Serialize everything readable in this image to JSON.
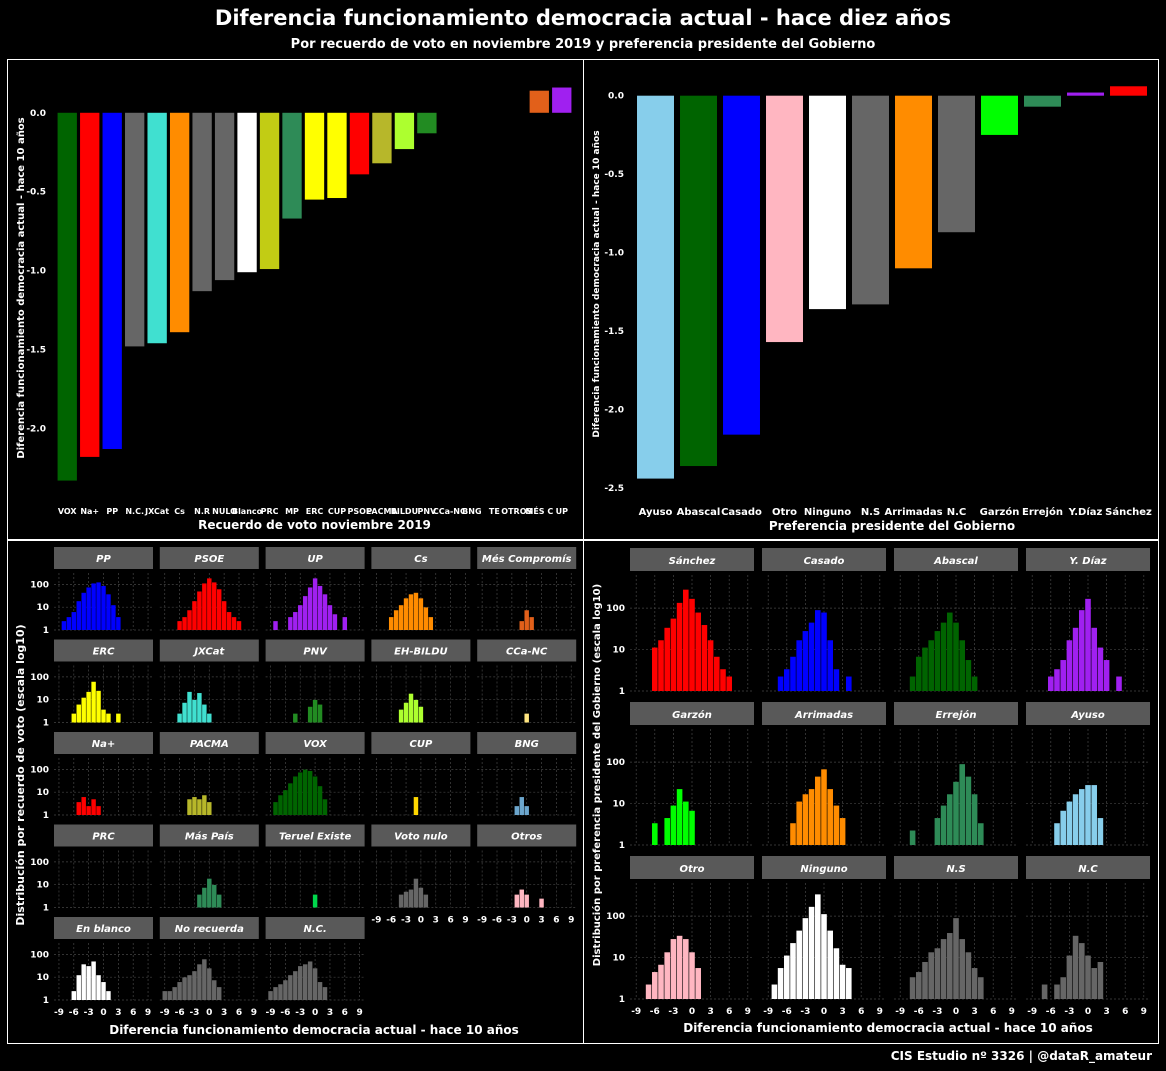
{
  "title": "Diferencia funcionamiento democracia actual - hace diez años",
  "subtitle": "Por recuerdo de voto en noviembre 2019 y preferencia presidente del Gobierno",
  "footer": "CIS Estudio nº 3326 | @dataR_amateur",
  "chart_data": [
    {
      "type": "bar",
      "title": "",
      "xlabel": "Recuerdo de voto noviembre 2019",
      "ylabel": "Diferencia funcionamiento democracia actual - hace 10 años",
      "ylim": [
        -2.32,
        0.1
      ],
      "yticks": [
        0.0,
        -0.5,
        -1.0,
        -1.5,
        -2.0
      ],
      "ytick_labels": [
        "0.0",
        "-0.5",
        "-1.0",
        "-1.5",
        "-2.0"
      ],
      "categories": [
        "VOX",
        "Na+",
        "PP",
        "N.C.",
        "JXCat",
        "Cs",
        "N.R",
        "NULO",
        "Blanco",
        "PRC",
        "MP",
        "ERC",
        "CUP",
        "PSOE",
        "PACMA",
        "BILDU",
        "PNV",
        "CCa-NC",
        "BNG",
        "TE",
        "OTROS",
        "MÉS C",
        "UP"
      ],
      "values": [
        -2.33,
        -2.18,
        -2.13,
        -1.48,
        -1.46,
        -1.39,
        -1.13,
        -1.06,
        -1.01,
        -0.99,
        -0.67,
        -0.55,
        -0.54,
        -0.39,
        -0.32,
        -0.23,
        -0.13,
        0,
        0,
        0,
        0,
        0.14,
        0.16
      ],
      "colors": [
        "#006400",
        "#FF0000",
        "#0000FF",
        "#666666",
        "#40E0D0",
        "#FF8C00",
        "#666666",
        "#666666",
        "#FFFFFF",
        "#C2CC14",
        "#2E8B57",
        "#FFFF00",
        "#FFFF00",
        "#FF0000",
        "#B7B72A",
        "#ADFF2F",
        "#228B22",
        "#FFE680",
        "#6CA6CD",
        "#00D84C",
        "#FFB6C1",
        "#E2601A",
        "#A020F0"
      ]
    },
    {
      "type": "bar",
      "title": "",
      "xlabel": "Preferencia presidente del Gobierno",
      "ylabel": "Diferencia funcionamiento democracia actual - hace 10 años",
      "ylim": [
        -2.5,
        0.1
      ],
      "yticks": [
        0.0,
        -0.5,
        -1.0,
        -1.5,
        -2.0,
        -2.5
      ],
      "ytick_labels": [
        "0.0",
        "-0.5",
        "-1.0",
        "-1.5",
        "-2.0",
        "-2.5"
      ],
      "categories": [
        "Ayuso",
        "Abascal",
        "Casado",
        "Otro",
        "Ninguno",
        "N.S",
        "Arrimadas",
        "N.C",
        "Garzón",
        "Errejón",
        "Y.Díaz",
        "Sánchez"
      ],
      "values": [
        -2.44,
        -2.36,
        -2.16,
        -1.57,
        -1.36,
        -1.33,
        -1.1,
        -0.87,
        -0.25,
        -0.07,
        0.02,
        0.06
      ],
      "colors": [
        "#87CEEB",
        "#006400",
        "#0000FF",
        "#FFB6C1",
        "#FFFFFF",
        "#666666",
        "#FF8C00",
        "#666666",
        "#00FF00",
        "#2E8B57",
        "#A020F0",
        "#FF0000"
      ]
    },
    {
      "type": "histogram",
      "title": "",
      "xlabel": "Diferencia funcionamiento democracia actual - hace 10 años",
      "ylabel": "Distribución por recuerdo de voto (escala log10)",
      "x_range": [
        -10,
        10
      ],
      "xticks": [
        -9,
        -6,
        -3,
        0,
        3,
        6,
        9
      ],
      "xtick_labels": [
        "-9",
        "-6",
        "-3",
        "0",
        "3",
        "6",
        "9"
      ],
      "yticks": [
        1,
        10,
        100
      ],
      "ytick_labels": [
        "1",
        "10",
        "100"
      ],
      "ymax_log": 2.5,
      "panels": [
        {
          "name": "PP",
          "color": "#0000FF",
          "counts": {
            "-8": 2,
            "-7": 3,
            "-6": 5,
            "-5": 15,
            "-4": 35,
            "-3": 60,
            "-2": 90,
            "-1": 100,
            "0": 70,
            "1": 30,
            "2": 10,
            "3": 3
          }
        },
        {
          "name": "PSOE",
          "color": "#FF0000",
          "counts": {
            "-6": 2,
            "-5": 3,
            "-4": 6,
            "-3": 15,
            "-2": 40,
            "-1": 90,
            "0": 150,
            "1": 100,
            "2": 50,
            "3": 15,
            "4": 5,
            "5": 3,
            "6": 2
          }
        },
        {
          "name": "UP",
          "color": "#A020F0",
          "counts": {
            "-8": 2,
            "-5": 3,
            "-4": 5,
            "-3": 10,
            "-2": 25,
            "-1": 60,
            "0": 150,
            "1": 70,
            "2": 30,
            "3": 10,
            "4": 4,
            "6": 3
          }
        },
        {
          "name": "Cs",
          "color": "#FF8C00",
          "counts": {
            "-6": 3,
            "-5": 6,
            "-4": 10,
            "-3": 20,
            "-2": 30,
            "-1": 35,
            "0": 20,
            "1": 8,
            "2": 3
          }
        },
        {
          "name": "Més Compromís",
          "color": "#E2601A",
          "counts": {
            "-1": 2,
            "0": 6,
            "1": 3
          }
        },
        {
          "name": "ERC",
          "color": "#FFFF00",
          "counts": {
            "-6": 2,
            "-5": 5,
            "-4": 10,
            "-3": 18,
            "-2": 50,
            "-1": 20,
            "0": 3,
            "1": 2,
            "3": 2
          }
        },
        {
          "name": "JXCat",
          "color": "#40E0D0",
          "counts": {
            "-6": 2,
            "-5": 6,
            "-4": 18,
            "-3": 8,
            "-2": 16,
            "-1": 5,
            "0": 2
          }
        },
        {
          "name": "PNV",
          "color": "#228B22",
          "counts": {
            "-4": 2,
            "-1": 4,
            "0": 8,
            "1": 5
          }
        },
        {
          "name": "EH-BILDU",
          "color": "#ADFF2F",
          "counts": {
            "-4": 3,
            "-3": 6,
            "-2": 15,
            "-1": 8,
            "0": 4
          }
        },
        {
          "name": "CCa-NC",
          "color": "#FFE680",
          "counts": {
            "0": 2
          }
        },
        {
          "name": "Na+",
          "color": "#FF0000",
          "counts": {
            "-5": 3,
            "-4": 5,
            "-3": 2,
            "-2": 4,
            "-1": 2
          }
        },
        {
          "name": "PACMA",
          "color": "#B7B72A",
          "counts": {
            "-4": 4,
            "-3": 5,
            "-2": 4,
            "-1": 6,
            "0": 3
          }
        },
        {
          "name": "VOX",
          "color": "#006400",
          "counts": {
            "-8": 3,
            "-7": 6,
            "-6": 10,
            "-5": 20,
            "-4": 40,
            "-3": 60,
            "-2": 80,
            "-1": 70,
            "0": 40,
            "1": 15,
            "2": 4
          }
        },
        {
          "name": "CUP",
          "color": "#FFD700",
          "counts": {
            "-1": 5
          }
        },
        {
          "name": "BNG",
          "color": "#6CA6CD",
          "counts": {
            "-2": 2,
            "-1": 5,
            "0": 2
          }
        },
        {
          "name": "PRC",
          "color": "#C2CC14",
          "counts": {}
        },
        {
          "name": "Más País",
          "color": "#2E8B57",
          "counts": {
            "-2": 3,
            "-1": 6,
            "0": 15,
            "1": 8,
            "2": 3
          }
        },
        {
          "name": "Teruel Existe",
          "color": "#00D84C",
          "counts": {
            "0": 3
          }
        },
        {
          "name": "Voto nulo",
          "color": "#666666",
          "counts": {
            "-4": 3,
            "-3": 4,
            "-2": 5,
            "-1": 15,
            "0": 6,
            "1": 3
          }
        },
        {
          "name": "Otros",
          "color": "#FFB6C1",
          "counts": {
            "-2": 3,
            "-1": 5,
            "0": 3,
            "3": 2
          }
        },
        {
          "name": "En blanco",
          "color": "#FFFFFF",
          "counts": {
            "-6": 2,
            "-5": 10,
            "-4": 30,
            "-3": 25,
            "-2": 40,
            "-1": 10,
            "0": 5,
            "1": 2
          }
        },
        {
          "name": "No recuerda",
          "color": "#666666",
          "counts": {
            "-9": 2,
            "-8": 2,
            "-7": 3,
            "-6": 5,
            "-5": 8,
            "-4": 10,
            "-3": 15,
            "-2": 30,
            "-1": 50,
            "0": 20,
            "1": 6,
            "2": 3
          }
        },
        {
          "name": "N.C.",
          "color": "#666666",
          "counts": {
            "-9": 2,
            "-8": 3,
            "-7": 4,
            "-6": 6,
            "-5": 10,
            "-4": 15,
            "-3": 25,
            "-2": 30,
            "-1": 40,
            "0": 20,
            "1": 5,
            "2": 3
          }
        }
      ]
    },
    {
      "type": "histogram",
      "title": "",
      "xlabel": "Diferencia funcionamiento democracia actual - hace 10 años",
      "ylabel": "Distribución por preferencia presidente del Gobierno (escala log10)",
      "x_range": [
        -10,
        10
      ],
      "xticks": [
        -9,
        -6,
        -3,
        0,
        3,
        6,
        9
      ],
      "xtick_labels": [
        "-9",
        "-6",
        "-3",
        "0",
        "3",
        "6",
        "9"
      ],
      "yticks": [
        1,
        10,
        100
      ],
      "ytick_labels": [
        "1",
        "10",
        "100"
      ],
      "ymax_log": 2.8,
      "panels": [
        {
          "name": "Sánchez",
          "color": "#FF0000",
          "counts": {
            "-6": 10,
            "-5": 15,
            "-4": 30,
            "-3": 50,
            "-2": 120,
            "-1": 250,
            "0": 150,
            "1": 70,
            "2": 35,
            "3": 15,
            "4": 6,
            "5": 3,
            "6": 2
          }
        },
        {
          "name": "Casado",
          "color": "#0000FF",
          "counts": {
            "-7": 2,
            "-6": 3,
            "-5": 6,
            "-4": 15,
            "-3": 25,
            "-2": 40,
            "-1": 80,
            "0": 70,
            "1": 15,
            "2": 3,
            "4": 2
          }
        },
        {
          "name": "Abascal",
          "color": "#006400",
          "counts": {
            "-7": 2,
            "-6": 6,
            "-5": 10,
            "-4": 15,
            "-3": 25,
            "-2": 40,
            "-1": 70,
            "0": 40,
            "1": 15,
            "2": 5,
            "3": 2
          }
        },
        {
          "name": "Y. Díaz",
          "color": "#A020F0",
          "counts": {
            "-6": 2,
            "-5": 3,
            "-4": 5,
            "-3": 15,
            "-2": 30,
            "-1": 80,
            "0": 150,
            "1": 30,
            "2": 10,
            "3": 5,
            "5": 2
          }
        },
        {
          "name": "Garzón",
          "color": "#00FF00",
          "counts": {
            "-6": 3,
            "-4": 4,
            "-3": 8,
            "-2": 20,
            "-1": 10,
            "0": 6
          }
        },
        {
          "name": "Arrimadas",
          "color": "#FF8C00",
          "counts": {
            "-5": 3,
            "-4": 10,
            "-3": 15,
            "-2": 20,
            "-1": 40,
            "0": 60,
            "1": 20,
            "2": 8,
            "3": 4
          }
        },
        {
          "name": "Errejón",
          "color": "#2E8B57",
          "counts": {
            "-7": 2,
            "-3": 4,
            "-2": 8,
            "-1": 15,
            "0": 30,
            "1": 80,
            "2": 40,
            "3": 15,
            "4": 3
          }
        },
        {
          "name": "Ayuso",
          "color": "#87CEEB",
          "counts": {
            "-5": 3,
            "-4": 6,
            "-3": 10,
            "-2": 15,
            "-1": 20,
            "0": 25,
            "1": 25,
            "2": 4
          }
        },
        {
          "name": "Otro",
          "color": "#FFB6C1",
          "counts": {
            "-7": 2,
            "-6": 4,
            "-5": 6,
            "-4": 12,
            "-3": 25,
            "-2": 30,
            "-1": 25,
            "0": 12,
            "1": 5
          }
        },
        {
          "name": "Ninguno",
          "color": "#FFFFFF",
          "counts": {
            "-8": 2,
            "-7": 5,
            "-6": 10,
            "-5": 20,
            "-4": 40,
            "-3": 80,
            "-2": 150,
            "-1": 300,
            "0": 100,
            "1": 40,
            "2": 15,
            "3": 6,
            "4": 5
          }
        },
        {
          "name": "N.S",
          "color": "#666666",
          "counts": {
            "-7": 3,
            "-6": 4,
            "-5": 7,
            "-4": 12,
            "-3": 15,
            "-2": 25,
            "-1": 35,
            "0": 80,
            "1": 25,
            "2": 12,
            "3": 5,
            "4": 3
          }
        },
        {
          "name": "N.C",
          "color": "#666666",
          "counts": {
            "-7": 2,
            "-5": 2,
            "-4": 3,
            "-3": 10,
            "-2": 30,
            "-1": 20,
            "0": 10,
            "1": 5,
            "2": 7
          }
        }
      ]
    }
  ]
}
